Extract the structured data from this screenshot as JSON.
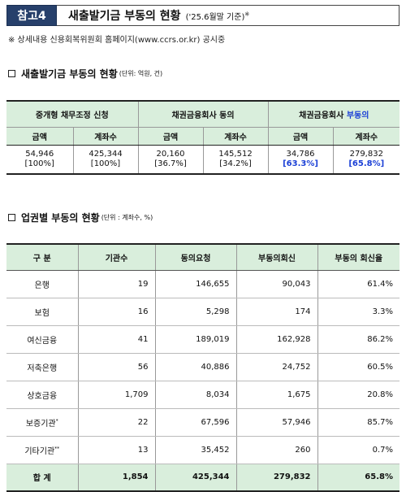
{
  "header": {
    "badge": "참고4",
    "title": "새출발기금 부동의 현황",
    "date": "('25.6월말 기준)",
    "sup": "※"
  },
  "note": "※ 상세내용 신용회복위원회 홈페이지(www.ccrs.or.kr) 공시중",
  "section1": {
    "title": "새출발기금 부동의 현황",
    "unit": "(단위: 억원, 건)"
  },
  "table1": {
    "groups": [
      "중개형 채무조정 신청",
      "채권금융회사 동의",
      "채권금융회사 "
    ],
    "group3_highlight": "부동의",
    "subheaders": [
      "금액",
      "계좌수",
      "금액",
      "계좌수",
      "금액",
      "계좌수"
    ],
    "values": [
      {
        "num": "54,946",
        "pct": "[100%]"
      },
      {
        "num": "425,344",
        "pct": "[100%]"
      },
      {
        "num": "20,160",
        "pct": "[36.7%]"
      },
      {
        "num": "145,512",
        "pct": "[34.2%]"
      },
      {
        "num": "34,786",
        "pct": "[63.3%]"
      },
      {
        "num": "279,832",
        "pct": "[65.8%]"
      }
    ]
  },
  "section2": {
    "title": "업권별 부동의 현황",
    "unit": "(단위 : 계좌수, %)"
  },
  "table2": {
    "headers": [
      "구  분",
      "기관수",
      "동의요청",
      "부동의회신",
      "부동의 회신율"
    ],
    "rows": [
      {
        "name": "은행",
        "sup": "",
        "c1": "19",
        "c2": "146,655",
        "c3": "90,043",
        "c4": "61.4%"
      },
      {
        "name": "보험",
        "sup": "",
        "c1": "16",
        "c2": "5,298",
        "c3": "174",
        "c4": "3.3%"
      },
      {
        "name": "여신금융",
        "sup": "",
        "c1": "41",
        "c2": "189,019",
        "c3": "162,928",
        "c4": "86.2%"
      },
      {
        "name": "저축은행",
        "sup": "",
        "c1": "56",
        "c2": "40,886",
        "c3": "24,752",
        "c4": "60.5%"
      },
      {
        "name": "상호금융",
        "sup": "",
        "c1": "1,709",
        "c2": "8,034",
        "c3": "1,675",
        "c4": "20.8%"
      },
      {
        "name": "보증기관",
        "sup": "*",
        "c1": "22",
        "c2": "67,596",
        "c3": "57,946",
        "c4": "85.7%"
      },
      {
        "name": "기타기관",
        "sup": "**",
        "c1": "13",
        "c2": "35,452",
        "c3": "260",
        "c4": "0.7%"
      }
    ],
    "total": {
      "name": "합  계",
      "c1": "1,854",
      "c2": "425,344",
      "c3": "279,832",
      "c4": "65.8%"
    }
  }
}
